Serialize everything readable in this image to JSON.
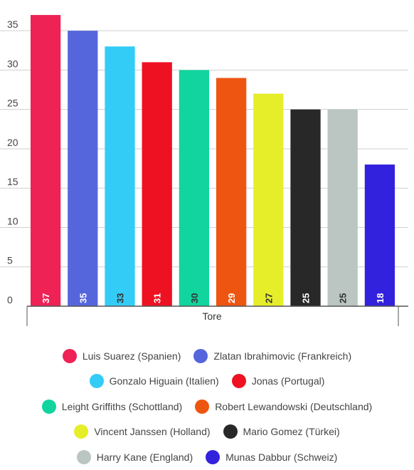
{
  "chart_data": {
    "type": "bar",
    "categories": [
      "Luis Suarez (Spanien)",
      "Zlatan Ibrahimovic (Frankreich)",
      "Gonzalo Higuain (Italien)",
      "Jonas (Portugal)",
      "Leight Griffiths (Schottland)",
      "Robert Lewandowski (Deutschland)",
      "Vincent Janssen (Holland)",
      "Mario Gomez (Türkei)",
      "Harry Kane (England)",
      "Munas Dabbur (Schweiz)"
    ],
    "values": [
      37,
      35,
      33,
      31,
      30,
      29,
      27,
      25,
      25,
      18
    ],
    "value_labels": [
      "37",
      "35",
      "33",
      "31",
      "30",
      "29",
      "27",
      "25",
      "25",
      "18"
    ],
    "colors": [
      "#ee2255",
      "#5566dd",
      "#33ccf6",
      "#ee1122",
      "#11d49e",
      "#ee5511",
      "#e6ee2a",
      "#282828",
      "#bbc6c2",
      "#3322dd"
    ],
    "label_colors": [
      "#ffffff",
      "#ffffff",
      "#333333",
      "#ffffff",
      "#333333",
      "#ffffff",
      "#333333",
      "#ffffff",
      "#333333",
      "#ffffff"
    ],
    "title": "",
    "xlabel": "Tore",
    "ylabel": "",
    "ylim": [
      0,
      38
    ],
    "yticks": [
      {
        "value": 0,
        "label": "0"
      },
      {
        "value": 5,
        "label": "5"
      },
      {
        "value": 10,
        "label": "10"
      },
      {
        "value": 15,
        "label": "15"
      },
      {
        "value": 20,
        "label": "20"
      },
      {
        "value": 25,
        "label": "25"
      },
      {
        "value": 30,
        "label": "30"
      },
      {
        "value": 35,
        "label": "35"
      }
    ],
    "grid": true,
    "legend_placement": "bottom"
  },
  "legend": {
    "rows": [
      [
        0,
        1
      ],
      [
        2,
        3
      ],
      [
        4,
        5
      ],
      [
        6,
        7
      ],
      [
        8,
        9
      ]
    ]
  }
}
